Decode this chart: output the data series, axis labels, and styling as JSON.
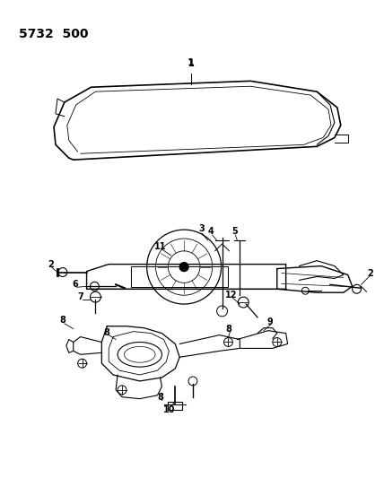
{
  "bg_color": "#ffffff",
  "line_color": "#000000",
  "title": "5732  500",
  "figsize": [
    4.28,
    5.33
  ],
  "dpi": 100
}
